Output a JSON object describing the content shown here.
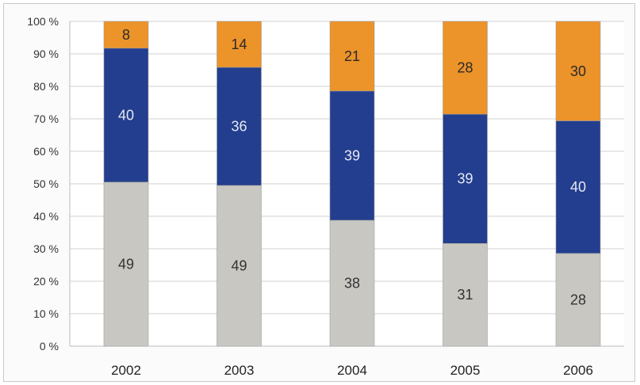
{
  "chart_data": {
    "type": "bar",
    "stacked": true,
    "percent_stacked": true,
    "categories": [
      "2002",
      "2003",
      "2004",
      "2005",
      "2006"
    ],
    "series": [
      {
        "values": [
          49,
          49,
          38,
          31,
          28
        ],
        "color": "#c8c7c2",
        "label_color": "#333333"
      },
      {
        "values": [
          40,
          36,
          39,
          39,
          40
        ],
        "color": "#233e8e",
        "label_color": "#e6e8f2"
      },
      {
        "values": [
          8,
          14,
          21,
          28,
          30
        ],
        "color": "#ec9329",
        "label_color": "#2a2a2a"
      }
    ],
    "y_ticks": [
      "0 %",
      "10 %",
      "20 %",
      "30 %",
      "40 %",
      "50 %",
      "60 %",
      "70 %",
      "80 %",
      "90 %",
      "100 %"
    ],
    "ylim": [
      0,
      100
    ],
    "grid": true,
    "title": "",
    "xlabel": "",
    "ylabel": ""
  }
}
